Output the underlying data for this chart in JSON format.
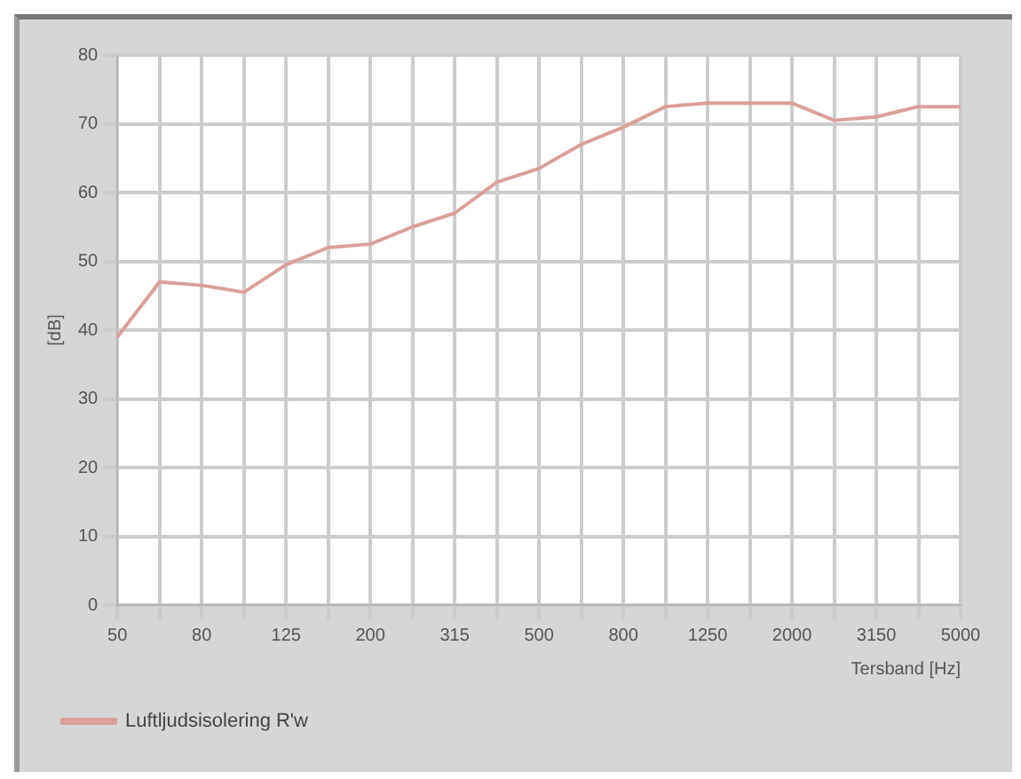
{
  "chart_data": {
    "type": "line",
    "xlabel": "Tersband [Hz]",
    "ylabel": "[dB]",
    "categories": [
      "50",
      null,
      "80",
      null,
      "125",
      null,
      "200",
      null,
      "315",
      null,
      "500",
      null,
      "800",
      null,
      "1250",
      null,
      "2000",
      null,
      "3150",
      null,
      "5000"
    ],
    "series": [
      {
        "name": "Luftljudsisolering R'w",
        "color": "#d9a09a",
        "values": [
          39,
          47,
          46.5,
          45.5,
          49.5,
          52,
          52.5,
          55,
          57,
          61.5,
          63.5,
          67,
          69.5,
          72.5,
          73,
          73,
          73,
          70.5,
          71,
          72.5,
          72.5
        ]
      }
    ],
    "ylim": [
      0,
      80
    ],
    "yticks": [
      0,
      10,
      20,
      30,
      40,
      50,
      60,
      70,
      80
    ],
    "grid": true,
    "legend": "bottom left",
    "marker": "none",
    "line_style": "solid"
  }
}
